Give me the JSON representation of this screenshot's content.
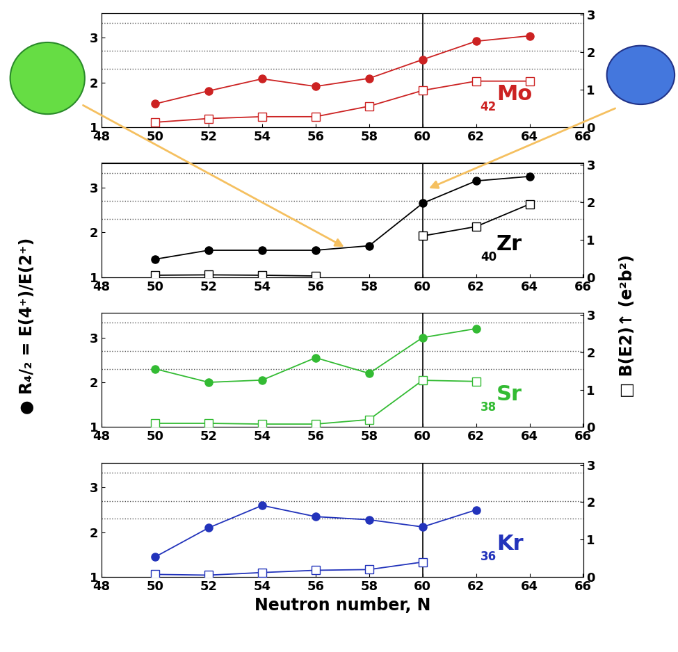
{
  "chart_data": [
    {
      "type": "line",
      "symbol": "Mo",
      "Z": 42,
      "color": "#cc2222",
      "x": [
        50,
        52,
        54,
        56,
        58,
        60,
        62,
        64
      ],
      "series": [
        {
          "name": "R₄/₂",
          "marker": "filled",
          "values": [
            1.52,
            1.81,
            2.08,
            1.91,
            2.09,
            2.51,
            2.92,
            3.04
          ]
        },
        {
          "name": "B(E2)↑",
          "marker": "open",
          "axis": "y2",
          "values": [
            0.13,
            0.23,
            0.28,
            0.28,
            0.56,
            0.98,
            1.23,
            1.23
          ]
        }
      ],
      "xlim": [
        48,
        66
      ],
      "xticks": [
        48,
        50,
        52,
        54,
        56,
        58,
        60,
        62,
        64,
        66
      ],
      "ylim": [
        1,
        3.55
      ],
      "yticks": [
        1,
        2,
        3
      ],
      "y2lim": [
        0,
        3.05
      ],
      "y2ticks": [
        0,
        1,
        2,
        3
      ],
      "reference_lines": [
        2.3,
        2.7,
        3.33
      ],
      "vertical_line": 60
    },
    {
      "type": "line",
      "symbol": "Zr",
      "Z": 40,
      "color": "#000000",
      "x": [
        50,
        52,
        54,
        56,
        58,
        60,
        62,
        64
      ],
      "series": [
        {
          "name": "R₄/₂",
          "marker": "filled",
          "values": [
            1.4,
            1.6,
            1.6,
            1.6,
            1.7,
            2.65,
            3.15,
            3.25
          ]
        },
        {
          "name": "B(E2)↑",
          "marker": "open",
          "axis": "y2",
          "values": [
            0.05,
            0.06,
            0.05,
            0.03,
            null,
            1.1,
            1.35,
            1.95
          ]
        }
      ],
      "xlim": [
        48,
        66
      ],
      "xticks": [
        48,
        50,
        52,
        54,
        56,
        58,
        60,
        62,
        64,
        66
      ],
      "ylim": [
        1,
        3.55
      ],
      "yticks": [
        1,
        2,
        3
      ],
      "y2lim": [
        0,
        3.05
      ],
      "y2ticks": [
        0,
        1,
        2,
        3
      ],
      "reference_lines": [
        2.3,
        2.7,
        3.33
      ],
      "vertical_line": 60
    },
    {
      "type": "line",
      "symbol": "Sr",
      "Z": 38,
      "color": "#33bb33",
      "x": [
        50,
        52,
        54,
        56,
        58,
        60,
        62
      ],
      "series": [
        {
          "name": "R₄/₂",
          "marker": "filled",
          "values": [
            2.3,
            2.0,
            2.05,
            2.55,
            2.2,
            3.0,
            3.2
          ]
        },
        {
          "name": "B(E2)↑",
          "marker": "open",
          "axis": "y2",
          "values": [
            0.1,
            0.1,
            0.08,
            0.08,
            0.2,
            1.25,
            1.22
          ]
        }
      ],
      "xlim": [
        48,
        66
      ],
      "xticks": [
        48,
        50,
        52,
        54,
        56,
        58,
        60,
        62,
        64,
        66
      ],
      "ylim": [
        1,
        3.55
      ],
      "yticks": [
        1,
        2,
        3
      ],
      "y2lim": [
        0,
        3.05
      ],
      "y2ticks": [
        0,
        1,
        2,
        3
      ],
      "reference_lines": [
        2.3,
        2.7,
        3.33
      ],
      "vertical_line": 60
    },
    {
      "type": "line",
      "symbol": "Kr",
      "Z": 36,
      "color": "#2233bb",
      "x": [
        50,
        52,
        54,
        56,
        58,
        60,
        62
      ],
      "series": [
        {
          "name": "R₄/₂",
          "marker": "filled",
          "values": [
            1.45,
            2.1,
            2.6,
            2.35,
            2.28,
            2.12,
            2.5
          ]
        },
        {
          "name": "B(E2)↑",
          "marker": "open",
          "axis": "y2",
          "values": [
            0.07,
            0.05,
            0.12,
            0.18,
            0.2,
            0.4,
            null
          ]
        }
      ],
      "xlim": [
        48,
        66
      ],
      "xticks": [
        48,
        50,
        52,
        54,
        56,
        58,
        60,
        62,
        64,
        66
      ],
      "ylim": [
        1,
        3.55
      ],
      "yticks": [
        1,
        2,
        3
      ],
      "y2lim": [
        0,
        3.05
      ],
      "y2ticks": [
        0,
        1,
        2,
        3
      ],
      "reference_lines": [
        2.3,
        2.7,
        3.33
      ],
      "vertical_line": 60,
      "xlabel": "Neutron number, N"
    }
  ],
  "ylabel": "● R₄/₂ = E(4⁺)/E(2⁺)",
  "y2label": "□ B(E2)↑ (e²b²)"
}
